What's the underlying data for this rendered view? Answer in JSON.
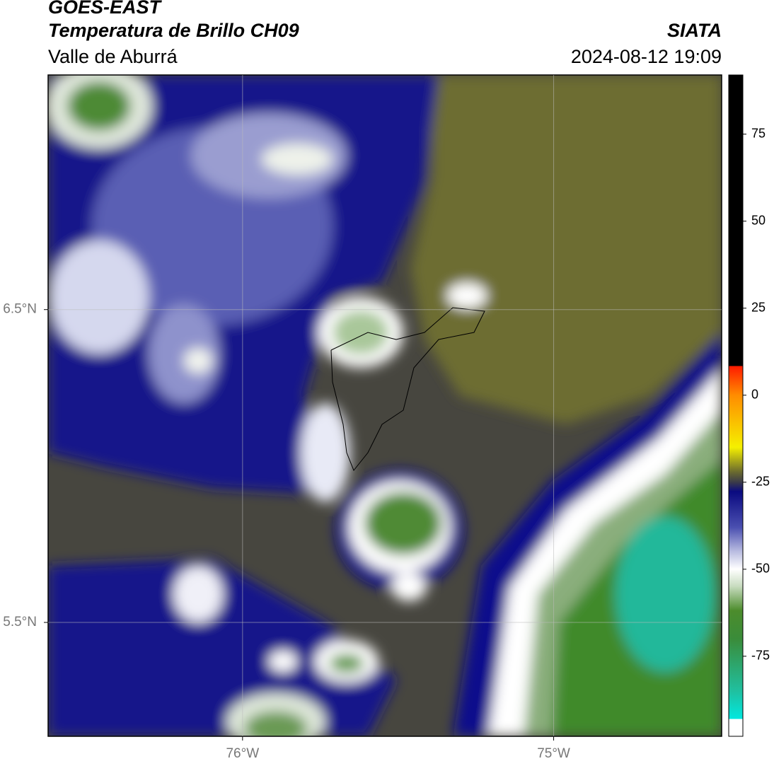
{
  "header": {
    "title": "GOES-EAST",
    "subtitle": "Temperatura de Brillo CH09",
    "region": "Valle de Aburrá",
    "source": "SIATA",
    "datetime": "2024-08-12 19:09"
  },
  "map": {
    "xlim": [
      -76.625,
      -74.46
    ],
    "ylim": [
      5.136,
      7.25
    ],
    "xticks": [
      {
        "value": -76,
        "label": "76°W"
      },
      {
        "value": -75,
        "label": "75°W"
      }
    ],
    "yticks": [
      {
        "value": 6.5,
        "label": "6.5°N"
      },
      {
        "value": 5.5,
        "label": "5.5°N"
      }
    ],
    "grid": true
  },
  "colorbar": {
    "lim": [
      -98,
      92
    ],
    "ticks": [
      75,
      50,
      25,
      0,
      -25,
      -50,
      -75
    ]
  }
}
